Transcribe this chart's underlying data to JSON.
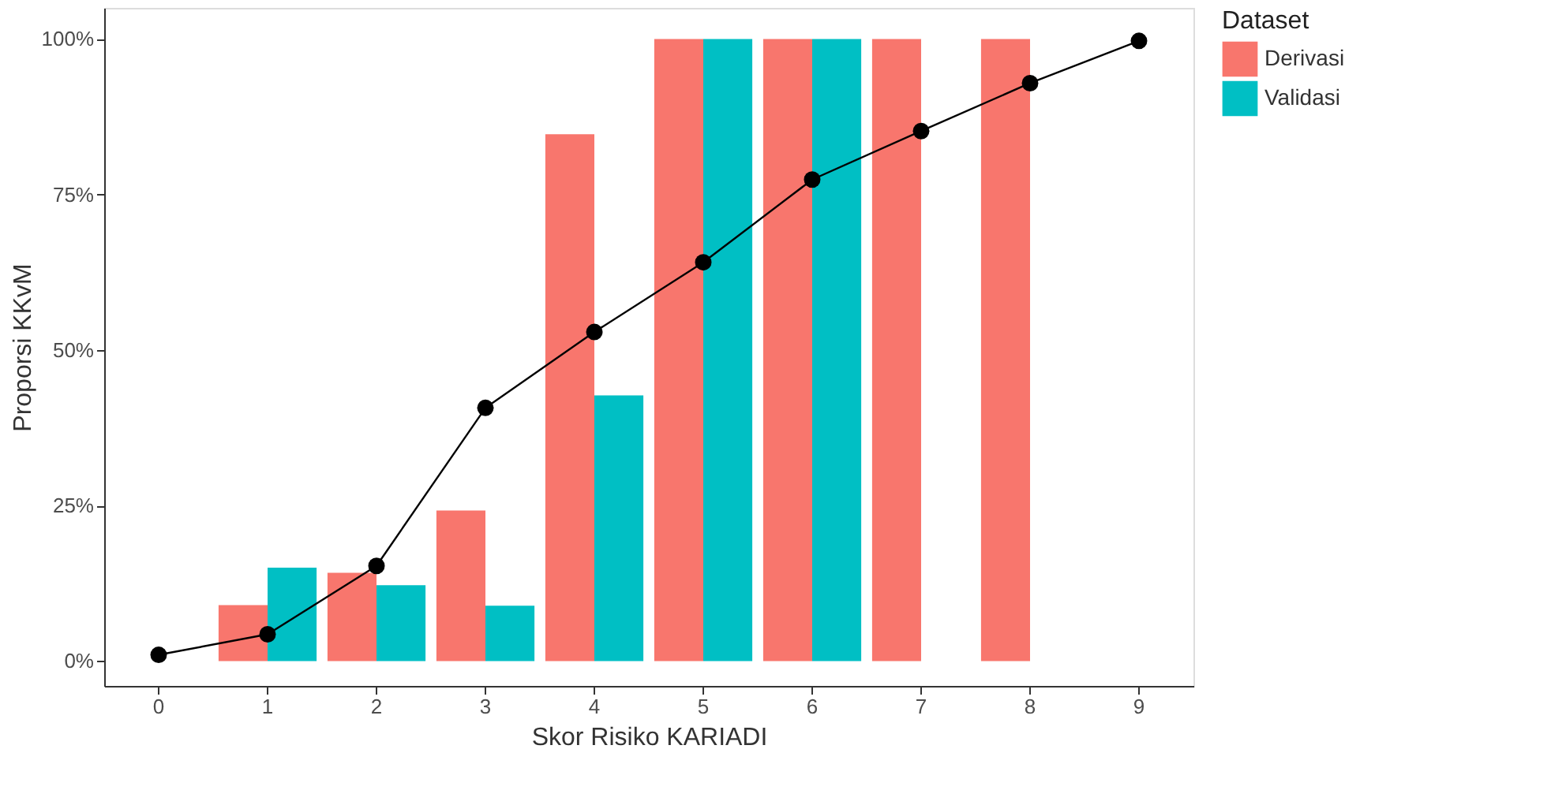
{
  "chart_data": {
    "type": "bar",
    "xlabel": "Skor Risiko KARIADI",
    "ylabel": "Proporsi KKvM",
    "legend_title": "Dataset",
    "legend": "right",
    "grid": false,
    "categories": [
      "0",
      "1",
      "2",
      "3",
      "4",
      "5",
      "6",
      "7",
      "8",
      "9"
    ],
    "ylim": [
      -4,
      105
    ],
    "yticks": [
      {
        "value": 0,
        "label": "0%"
      },
      {
        "value": 25,
        "label": "25%"
      },
      {
        "value": 50,
        "label": "50%"
      },
      {
        "value": 75,
        "label": "75%"
      },
      {
        "value": 100,
        "label": "100%"
      }
    ],
    "series": [
      {
        "name": "Derivasi",
        "color": "#f8766d",
        "values": [
          null,
          9,
          14.2,
          24.2,
          84.7,
          100,
          100,
          100,
          100,
          null
        ]
      },
      {
        "name": "Validasi",
        "color": "#00bfc4",
        "values": [
          null,
          15,
          12.2,
          8.9,
          42.7,
          100,
          100,
          null,
          null,
          null
        ]
      },
      {
        "type": "line",
        "color": "#000000",
        "marker": "circle",
        "values": [
          1,
          4.3,
          15.3,
          40.7,
          52.9,
          64.1,
          77.4,
          85.2,
          92.9,
          99.7
        ]
      }
    ]
  }
}
